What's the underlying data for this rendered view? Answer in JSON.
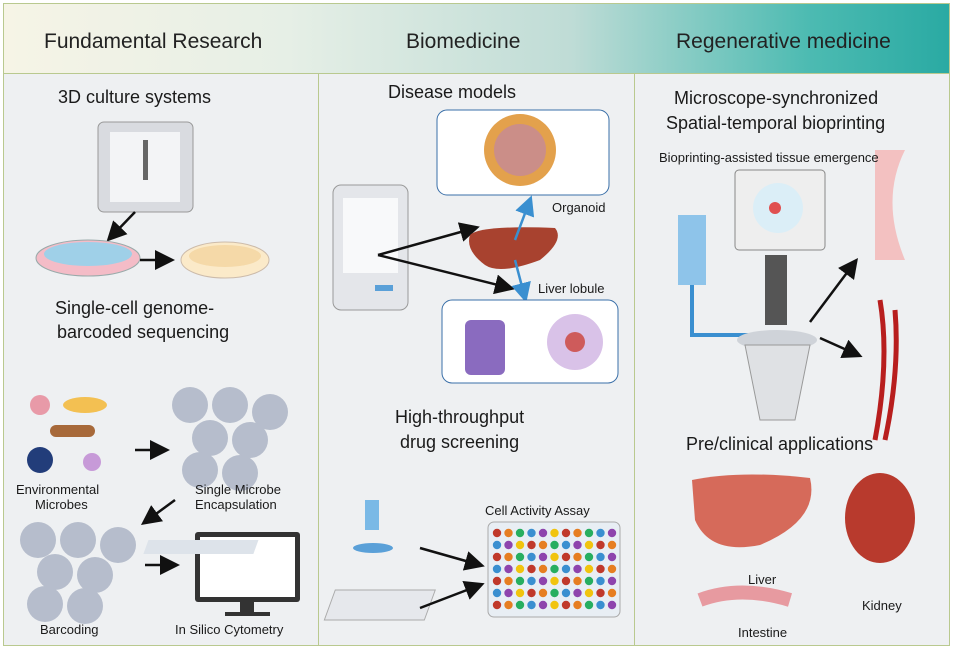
{
  "header": {
    "col1": "Fundamental Research",
    "col2": "Biomedicine",
    "col3": "Regenerative medicine"
  },
  "col1": {
    "section1": "3D culture systems",
    "section2_line1": "Single-cell genome-",
    "section2_line2": "barcoded sequencing",
    "labels": {
      "env1": "Environmental",
      "env2": "Microbes",
      "enc1": "Single Microbe",
      "enc2": "Encapsulation",
      "barcoding": "Barcoding",
      "cytometry": "In Silico Cytometry"
    }
  },
  "col2": {
    "section1": "Disease models",
    "organoid": "Organoid",
    "liver_lobule": "Liver lobule",
    "section2_line1": "High-throughput",
    "section2_line2": "drug screening",
    "assay": "Cell Activity Assay"
  },
  "col3": {
    "section1_line1": "Microscope-synchronized",
    "section1_line2": "Spatial-temporal bioprinting",
    "subtitle": "Bioprinting-assisted tissue emergence",
    "section2": "Pre/clinical applications",
    "liver": "Liver",
    "kidney": "Kidney",
    "intestine": "Intestine"
  },
  "colors": {
    "border": "#b9c98f",
    "panel": "#eef0f2",
    "header_accent": "#2aaaa3",
    "arrow": "#111111",
    "blue_arrow": "#3a8fd0"
  }
}
